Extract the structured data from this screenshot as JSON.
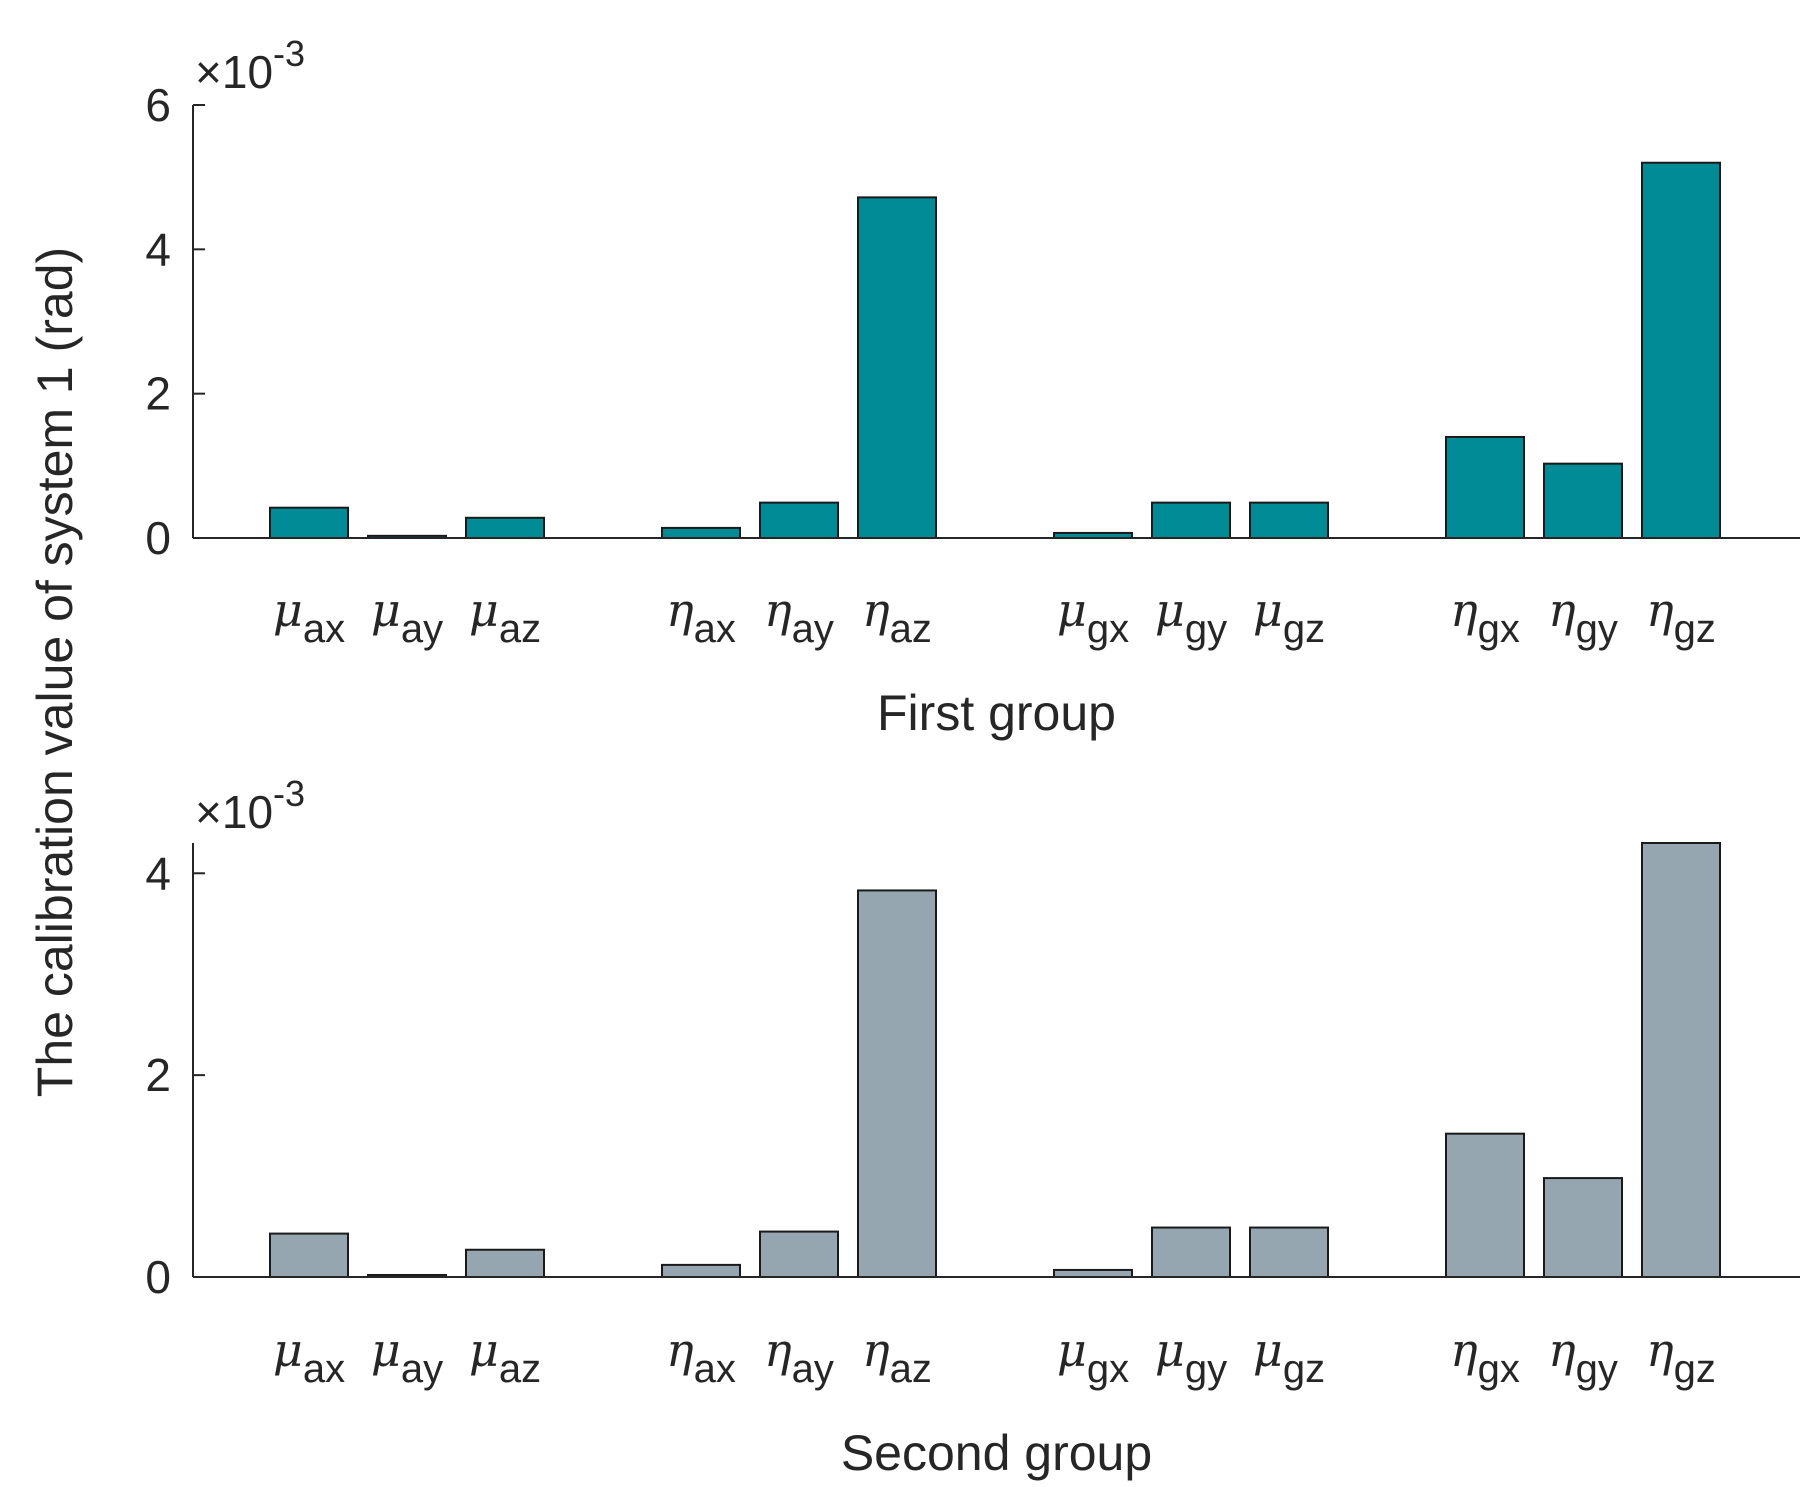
{
  "ylabel": "The calibration value of system 1 (rad)",
  "category_labels": [
    {
      "sym": "μ",
      "sub": "ax"
    },
    {
      "sym": "μ",
      "sub": "ay"
    },
    {
      "sym": "μ",
      "sub": "az"
    },
    {
      "sym": "η",
      "sub": "ax"
    },
    {
      "sym": "η",
      "sub": "ay"
    },
    {
      "sym": "η",
      "sub": "az"
    },
    {
      "sym": "μ",
      "sub": "gx"
    },
    {
      "sym": "μ",
      "sub": "gy"
    },
    {
      "sym": "μ",
      "sub": "gz"
    },
    {
      "sym": "η",
      "sub": "gx"
    },
    {
      "sym": "η",
      "sub": "gy"
    },
    {
      "sym": "η",
      "sub": "gz"
    }
  ],
  "chart_data": [
    {
      "type": "bar",
      "title": "",
      "xlabel": "First group",
      "ylabel": "The calibration value of system 1 (rad)",
      "scale_label": "×10",
      "scale_exponent": "-3",
      "categories": [
        "μ_ax",
        "μ_ay",
        "μ_az",
        "η_ax",
        "η_ay",
        "η_az",
        "μ_gx",
        "μ_gy",
        "μ_gz",
        "η_gx",
        "η_gy",
        "η_gz"
      ],
      "values": [
        0.00042,
        3e-05,
        0.00028,
        0.00014,
        0.00049,
        0.00472,
        7e-05,
        0.00049,
        0.00049,
        0.0014,
        0.00103,
        0.0052
      ],
      "ylim": [
        0,
        0.006
      ],
      "yticks": [
        0,
        0.002,
        0.004,
        0.006
      ],
      "ytick_labels": [
        "0",
        "2",
        "4",
        "6"
      ],
      "color": "#008b96"
    },
    {
      "type": "bar",
      "title": "",
      "xlabel": "Second group",
      "ylabel": "The calibration value of system 1 (rad)",
      "scale_label": "×10",
      "scale_exponent": "-3",
      "categories": [
        "μ_ax",
        "μ_ay",
        "μ_az",
        "η_ax",
        "η_ay",
        "η_az",
        "μ_gx",
        "μ_gy",
        "μ_gz",
        "η_gx",
        "η_gy",
        "η_gz"
      ],
      "values": [
        0.00043,
        2e-05,
        0.00027,
        0.00012,
        0.00045,
        0.00383,
        7e-05,
        0.00049,
        0.00049,
        0.00142,
        0.00098,
        0.0043
      ],
      "ylim": [
        0,
        0.0043
      ],
      "yticks": [
        0,
        0.002,
        0.004
      ],
      "ytick_labels": [
        "0",
        "2",
        "4"
      ],
      "color": "#95a6b1"
    }
  ]
}
